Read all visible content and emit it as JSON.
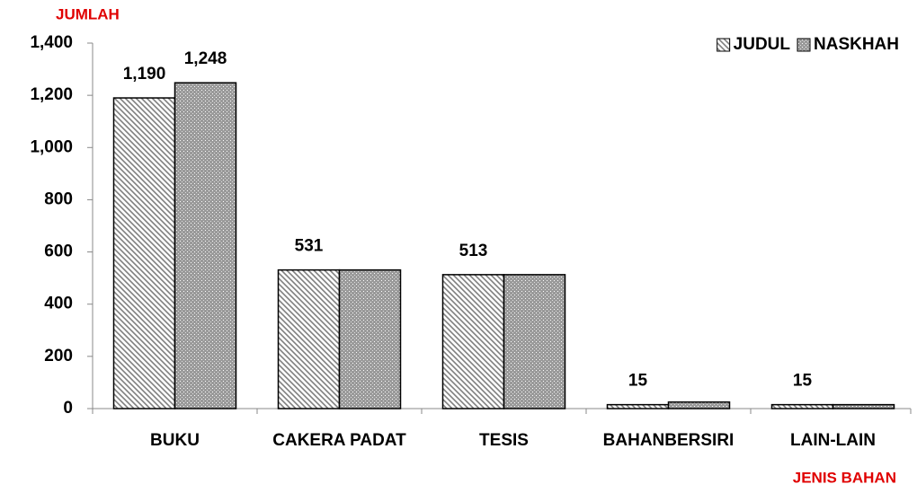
{
  "chart_data": {
    "type": "bar",
    "y_label": "JUMLAH",
    "x_label": "JENIS BAHAN",
    "categories": [
      "BUKU",
      "CAKERA PADAT",
      "TESIS",
      "BAHANBERSIRI",
      "LAIN-LAIN"
    ],
    "series": [
      {
        "name": "JUDUL",
        "color": "#7f7f7f",
        "pattern": "stripes",
        "values": [
          1190,
          531,
          513,
          15,
          15
        ],
        "value_labels": [
          "1,190",
          "531",
          "513",
          "15",
          "15"
        ]
      },
      {
        "name": "NASKHAH",
        "color": "#9a9a9a",
        "pattern": "dots",
        "values": [
          1248,
          531,
          513,
          25,
          15
        ],
        "value_labels": [
          "1,248",
          null,
          null,
          null,
          null
        ]
      }
    ],
    "ylim": [
      0,
      1400
    ],
    "yticks": [
      0,
      200,
      400,
      600,
      800,
      {
        "value": 1000,
        "label": "1,000"
      },
      {
        "value": 1200,
        "label": "1,200"
      },
      {
        "value": 1400,
        "label": "1,400"
      }
    ],
    "grid": false,
    "legend": "upper right"
  }
}
